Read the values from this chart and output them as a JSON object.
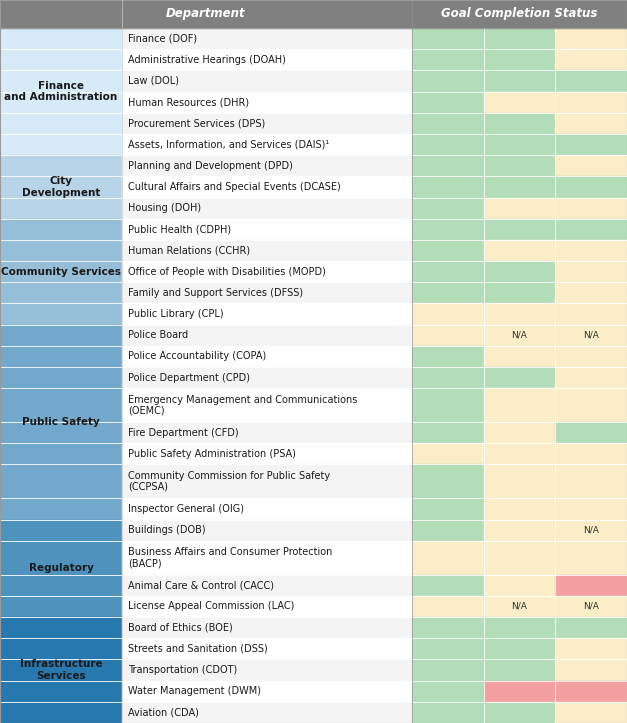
{
  "header_bg": "#808080",
  "header_text_color": "#ffffff",
  "header_font_size": 8.5,
  "group_font_size": 7.5,
  "dept_font_size": 7.0,
  "cell_font_size": 6.5,
  "green": "#b2ddb8",
  "beige": "#faedc8",
  "pink": "#f4a0a0",
  "white": "#ffffff",
  "dept_bg_even": "#f0f0f0",
  "dept_bg_odd": "#ffffff",
  "groups": [
    {
      "name": "Finance\nand Administration",
      "bg": "#d6eaf8",
      "departments": [
        "Finance (DOF)",
        "Administrative Hearings (DOAH)",
        "Law (DOL)",
        "Human Resources (DHR)",
        "Procurement Services (DPS)",
        "Assets, Information, and Services (DAIS)¹"
      ],
      "status": [
        [
          "green",
          "green",
          "beige"
        ],
        [
          "green",
          "green",
          "beige"
        ],
        [
          "green",
          "green",
          "green"
        ],
        [
          "green",
          "beige",
          "beige"
        ],
        [
          "green",
          "green",
          "beige"
        ],
        [
          "green",
          "green",
          "green"
        ]
      ]
    },
    {
      "name": "City\nDevelopment",
      "bg": "#b8d4e8",
      "departments": [
        "Planning and Development (DPD)",
        "Cultural Affairs and Special Events (DCASE)",
        "Housing (DOH)"
      ],
      "status": [
        [
          "green",
          "green",
          "beige"
        ],
        [
          "green",
          "green",
          "green"
        ],
        [
          "green",
          "beige",
          "beige"
        ]
      ]
    },
    {
      "name": "Community Services",
      "bg": "#96bed9",
      "departments": [
        "Public Health (CDPH)",
        "Human Relations (CCHR)",
        "Office of People with Disabilities (MOPD)",
        "Family and Support Services (DFSS)",
        "Public Library (CPL)"
      ],
      "status": [
        [
          "green",
          "green",
          "green"
        ],
        [
          "green",
          "beige",
          "beige"
        ],
        [
          "green",
          "green",
          "beige"
        ],
        [
          "green",
          "green",
          "beige"
        ],
        [
          "beige",
          "beige",
          "beige"
        ]
      ]
    },
    {
      "name": "Public Safety",
      "bg": "#72a8cc",
      "departments": [
        "Police Board",
        "Police Accountability (COPA)",
        "Police Department (CPD)",
        "Emergency Management and Communications\n(OEMC)",
        "Fire Department (CFD)",
        "Public Safety Administration (PSA)",
        "Community Commission for Public Safety\n(CCPSA)",
        "Inspector General (OIG)"
      ],
      "status": [
        [
          "beige",
          "N/A",
          "N/A"
        ],
        [
          "green",
          "beige",
          "beige"
        ],
        [
          "green",
          "green",
          "beige"
        ],
        [
          "green",
          "beige",
          "beige"
        ],
        [
          "green",
          "beige",
          "green"
        ],
        [
          "beige",
          "beige",
          "beige"
        ],
        [
          "green",
          "beige",
          "beige"
        ],
        [
          "green",
          "beige",
          "beige"
        ]
      ],
      "multiline": [
        false,
        false,
        false,
        true,
        false,
        false,
        true,
        false
      ]
    },
    {
      "name": "Regulatory",
      "bg": "#4e92be",
      "departments": [
        "Buildings (DOB)",
        "Business Affairs and Consumer Protection\n(BACP)",
        "Animal Care & Control (CACC)",
        "License Appeal Commission (LAC)"
      ],
      "status": [
        [
          "green",
          "beige",
          "N/A"
        ],
        [
          "beige",
          "beige",
          "beige"
        ],
        [
          "green",
          "beige",
          "pink"
        ],
        [
          "beige",
          "N/A",
          "N/A"
        ]
      ],
      "multiline": [
        false,
        true,
        false,
        false
      ]
    },
    {
      "name": "Infrastructure\nServices",
      "bg": "#2878b0",
      "departments": [
        "Board of Ethics (BOE)",
        "Streets and Sanitation (DSS)",
        "Transportation (CDOT)",
        "Water Management (DWM)",
        "Aviation (CDA)"
      ],
      "status": [
        [
          "green",
          "green",
          "green"
        ],
        [
          "green",
          "green",
          "beige"
        ],
        [
          "green",
          "green",
          "beige"
        ],
        [
          "green",
          "pink",
          "pink"
        ],
        [
          "green",
          "green",
          "beige"
        ]
      ]
    }
  ]
}
